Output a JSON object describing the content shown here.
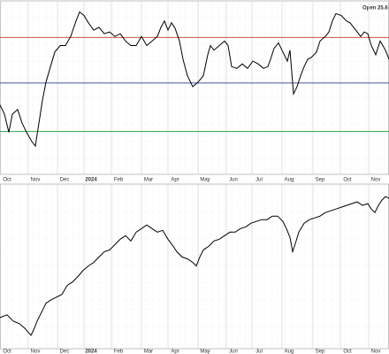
{
  "chart_data": [
    {
      "type": "line",
      "annotation": "Open 25.6",
      "xlim": [
        0,
        440
      ],
      "ylim": [
        4,
        194
      ],
      "xticks": [
        {
          "value": 8,
          "label": "Oct"
        },
        {
          "value": 40,
          "label": "Nov"
        },
        {
          "value": 73,
          "label": "Dec"
        },
        {
          "value": 103,
          "label": "2024"
        },
        {
          "value": 134,
          "label": "Feb"
        },
        {
          "value": 168,
          "label": "Mar"
        },
        {
          "value": 198,
          "label": "Apr"
        },
        {
          "value": 232,
          "label": "May"
        },
        {
          "value": 264,
          "label": "Jun"
        },
        {
          "value": 293,
          "label": "Jul"
        },
        {
          "value": 327,
          "label": "Aug"
        },
        {
          "value": 362,
          "label": "Sep"
        },
        {
          "value": 393,
          "label": "Oct"
        },
        {
          "value": 425,
          "label": "Nov"
        }
      ],
      "grid": true,
      "hlines": [
        {
          "value": 154,
          "color": "#c0392b"
        },
        {
          "value": 104,
          "color": "#2c3e8f"
        },
        {
          "value": 51,
          "color": "#2e9e3e"
        }
      ],
      "x": [
        0,
        5,
        10,
        14,
        20,
        25,
        30,
        36,
        40,
        44,
        48,
        52,
        58,
        62,
        68,
        74,
        80,
        86,
        90,
        95,
        100,
        106,
        112,
        118,
        124,
        130,
        136,
        142,
        148,
        154,
        160,
        166,
        172,
        178,
        182,
        186,
        190,
        194,
        198,
        203,
        207,
        212,
        218,
        224,
        230,
        235,
        238,
        242,
        248,
        254,
        258,
        262,
        268,
        274,
        280,
        286,
        292,
        298,
        303,
        306,
        310,
        315,
        320,
        325,
        328,
        332,
        336,
        340,
        344,
        348,
        352,
        358,
        362,
        368,
        372,
        376,
        380,
        386,
        392,
        396,
        400,
        404,
        408,
        412,
        416,
        420,
        425,
        430,
        436,
        440
      ],
      "series": [
        {
          "color": "#000000",
          "values": [
            80,
            70,
            50,
            70,
            75,
            60,
            50,
            40,
            35,
            60,
            85,
            105,
            125,
            138,
            145,
            145,
            155,
            172,
            182,
            178,
            170,
            162,
            165,
            158,
            160,
            155,
            158,
            150,
            145,
            145,
            155,
            145,
            150,
            155,
            165,
            172,
            162,
            170,
            164,
            150,
            130,
            112,
            100,
            105,
            112,
            135,
            145,
            140,
            145,
            150,
            145,
            122,
            120,
            125,
            120,
            128,
            125,
            120,
            122,
            130,
            142,
            148,
            138,
            128,
            140,
            92,
            100,
            112,
            122,
            130,
            132,
            138,
            150,
            155,
            160,
            172,
            180,
            178,
            172,
            170,
            165,
            160,
            155,
            160,
            158,
            145,
            135,
            150,
            140,
            130
          ]
        }
      ]
    },
    {
      "type": "line",
      "xlim": [
        0,
        440
      ],
      "ylim": [
        7,
        192
      ],
      "grid": true,
      "x": [
        0,
        8,
        15,
        22,
        28,
        35,
        38,
        42,
        48,
        52,
        58,
        64,
        70,
        76,
        82,
        88,
        94,
        100,
        106,
        112,
        118,
        124,
        130,
        136,
        142,
        148,
        154,
        160,
        166,
        172,
        178,
        184,
        190,
        196,
        200,
        206,
        212,
        218,
        222,
        226,
        230,
        236,
        242,
        248,
        254,
        260,
        266,
        272,
        278,
        284,
        290,
        296,
        302,
        308,
        314,
        320,
        324,
        328,
        331,
        334,
        338,
        344,
        350,
        356,
        362,
        368,
        374,
        380,
        386,
        392,
        398,
        404,
        410,
        416,
        420,
        424,
        428,
        432,
        436,
        440
      ],
      "series": [
        {
          "color": "#000000",
          "values": [
            42,
            45,
            38,
            35,
            30,
            22,
            28,
            38,
            50,
            58,
            62,
            65,
            68,
            78,
            82,
            88,
            95,
            100,
            104,
            110,
            116,
            118,
            124,
            130,
            134,
            128,
            138,
            142,
            146,
            142,
            138,
            140,
            130,
            122,
            116,
            110,
            108,
            104,
            100,
            110,
            118,
            122,
            128,
            130,
            134,
            138,
            138,
            142,
            144,
            148,
            150,
            152,
            152,
            156,
            156,
            150,
            142,
            132,
            116,
            125,
            138,
            148,
            152,
            154,
            156,
            160,
            162,
            164,
            166,
            168,
            170,
            172,
            168,
            170,
            164,
            160,
            168,
            174,
            178,
            176
          ]
        }
      ]
    }
  ]
}
